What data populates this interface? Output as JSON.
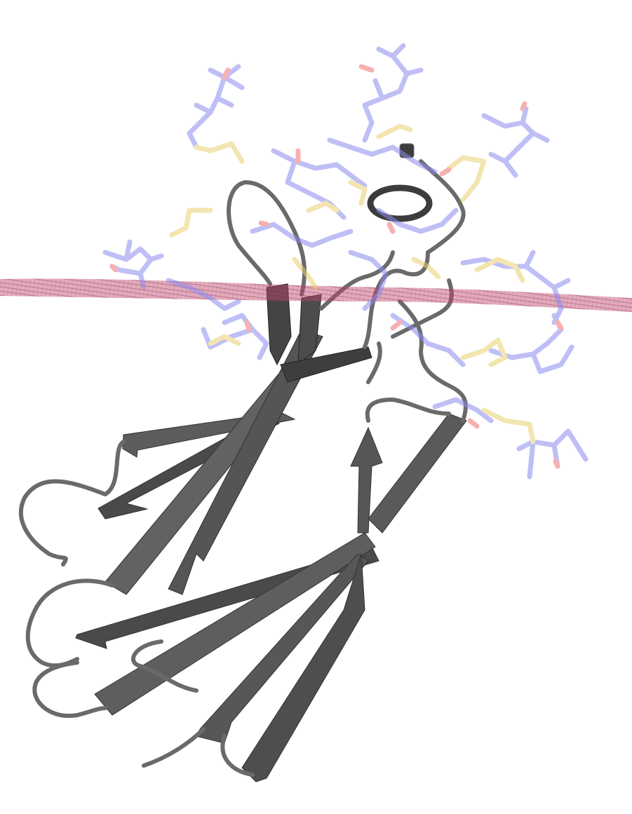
{
  "scene": {
    "subject": "protein-structure-render",
    "colors": {
      "background": "#ffffff",
      "cartoon_strand": "#5c5c5c",
      "cartoon_strand_dark": "#3e3e3e",
      "cartoon_loop": "#6a6a6a",
      "membrane_band": "#c24a6e",
      "stick_carbon": "#8c8cf0",
      "stick_sulfur": "#e8d070",
      "stick_oxygen": "#f07070"
    },
    "legend": []
  }
}
